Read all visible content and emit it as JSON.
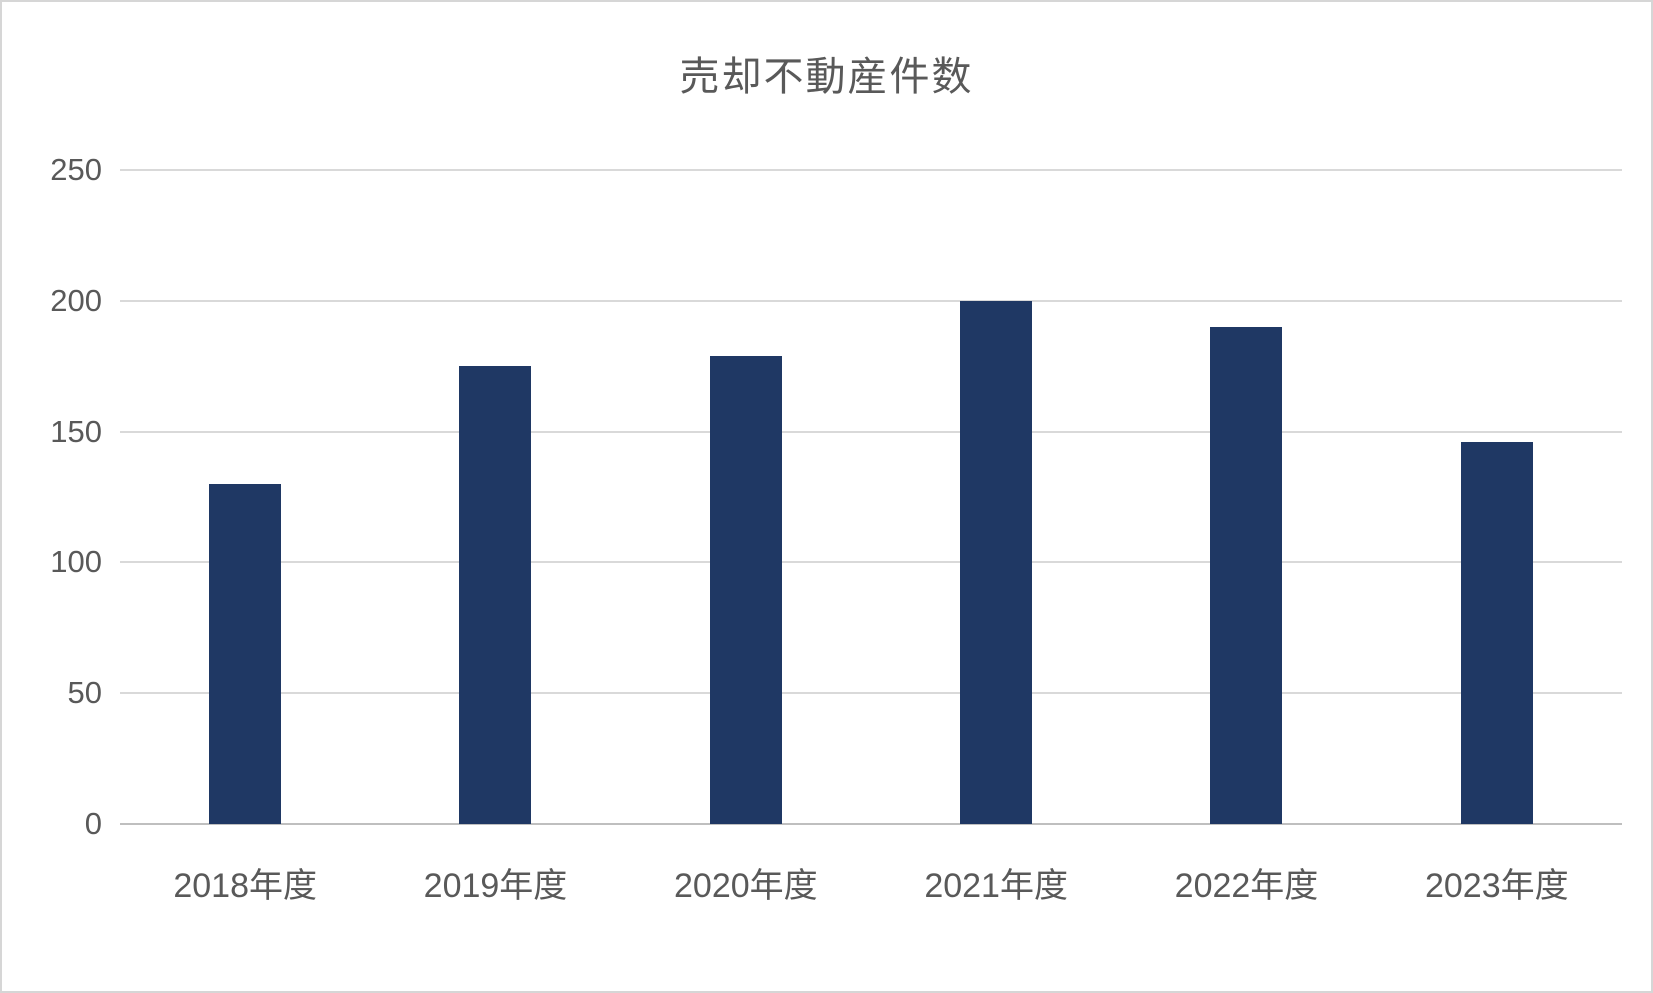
{
  "chart_data": {
    "type": "bar",
    "title": "売却不動産件数",
    "categories": [
      "2018年度",
      "2019年度",
      "2020年度",
      "2021年度",
      "2022年度",
      "2023年度"
    ],
    "values": [
      130,
      175,
      179,
      200,
      190,
      146
    ],
    "xlabel": "",
    "ylabel": "",
    "ylim": [
      0,
      250
    ],
    "yticks": [
      0,
      50,
      100,
      150,
      200,
      250
    ],
    "grid": "horizontal",
    "legend": "none",
    "bar_color": "#1F3864",
    "gridline_color": "#D9D9D9",
    "baseline_color": "#BFBFBF",
    "axis_label_color": "#595959",
    "title_color": "#595959",
    "background": "#FFFFFF"
  }
}
